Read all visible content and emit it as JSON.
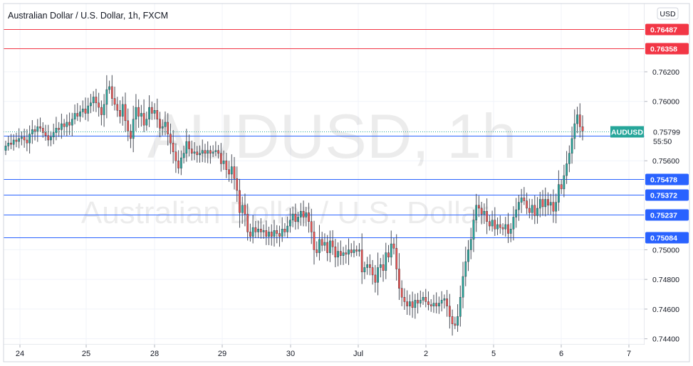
{
  "chart_data": {
    "type": "candlestick",
    "title": "Australian Dollar / U.S. Dollar, 1h, FXCM",
    "watermark_symbol": "AUDUSD, 1h",
    "watermark_name": "Australian Dollar / U.S. Dollar",
    "currency_label": "USD",
    "ylim": [
      0.7436,
      0.7666
    ],
    "y_ticks": [
      "0.76200",
      "0.76000",
      "0.75600",
      "0.75000",
      "0.74800",
      "0.74600",
      "0.74400"
    ],
    "x_ticks": [
      "24",
      "25",
      "28",
      "29",
      "30",
      "Jul",
      "2",
      "5",
      "6",
      "7"
    ],
    "grid": true,
    "last_price": {
      "symbol": "AUDUSD",
      "value": "0.75799",
      "countdown": "55:50",
      "color": "#26a69a"
    },
    "resistance_levels": [
      {
        "value": "0.76487",
        "color": "#f23645"
      },
      {
        "value": "0.76358",
        "color": "#f23645"
      }
    ],
    "support_levels": [
      {
        "value": "0.75767",
        "color": "#2962ff"
      },
      {
        "value": "0.75478",
        "color": "#2962ff"
      },
      {
        "value": "0.75372",
        "color": "#2962ff"
      },
      {
        "value": "0.75237",
        "color": "#2962ff"
      },
      {
        "value": "0.75084",
        "color": "#2962ff"
      }
    ],
    "colors": {
      "up": "#26a69a",
      "down": "#ef5350",
      "wick": "#4a4e58"
    },
    "closes": [
      0.757,
      0.7572,
      0.7571,
      0.7574,
      0.7573,
      0.7575,
      0.7576,
      0.7574,
      0.7572,
      0.7578,
      0.7581,
      0.758,
      0.7583,
      0.7582,
      0.7579,
      0.7577,
      0.7574,
      0.7576,
      0.7579,
      0.7582,
      0.7581,
      0.7585,
      0.7583,
      0.7586,
      0.7584,
      0.7588,
      0.7592,
      0.759,
      0.7593,
      0.7595,
      0.7592,
      0.7597,
      0.7599,
      0.7603,
      0.7599,
      0.7596,
      0.7591,
      0.7598,
      0.7608,
      0.761,
      0.7602,
      0.7598,
      0.7594,
      0.759,
      0.7598,
      0.7587,
      0.758,
      0.7575,
      0.7588,
      0.7596,
      0.759,
      0.7592,
      0.7584,
      0.7588,
      0.7596,
      0.7592,
      0.7594,
      0.7588,
      0.7582,
      0.7583,
      0.7586,
      0.7578,
      0.7572,
      0.7566,
      0.756,
      0.7555,
      0.7562,
      0.7565,
      0.7573,
      0.7568,
      0.7565,
      0.7566,
      0.7564,
      0.7565,
      0.7567,
      0.7565,
      0.7567,
      0.7565,
      0.7566,
      0.7567,
      0.7565,
      0.7558,
      0.756,
      0.7554,
      0.7551,
      0.7556,
      0.7548,
      0.754,
      0.7525,
      0.753,
      0.7524,
      0.7512,
      0.7509,
      0.7515,
      0.7512,
      0.7514,
      0.7512,
      0.7513,
      0.7509,
      0.7512,
      0.7509,
      0.7513,
      0.7511,
      0.7509,
      0.7514,
      0.7512,
      0.7516,
      0.752,
      0.7524,
      0.7519,
      0.7522,
      0.7526,
      0.7522,
      0.7525,
      0.7519,
      0.7512,
      0.75,
      0.7498,
      0.7507,
      0.7503,
      0.7505,
      0.7498,
      0.7506,
      0.7502,
      0.7495,
      0.7499,
      0.7496,
      0.7498,
      0.7497,
      0.75,
      0.7498,
      0.75,
      0.7499,
      0.75,
      0.7485,
      0.7488,
      0.749,
      0.7488,
      0.7483,
      0.7478,
      0.7488,
      0.749,
      0.7486,
      0.7498,
      0.7495,
      0.7504,
      0.7501,
      0.7487,
      0.7474,
      0.7468,
      0.7465,
      0.7462,
      0.7465,
      0.7461,
      0.7466,
      0.7464,
      0.7466,
      0.7468,
      0.7465,
      0.7463,
      0.7462,
      0.7464,
      0.7462,
      0.7464,
      0.7466,
      0.7467,
      0.7462,
      0.7455,
      0.745,
      0.7449,
      0.7455,
      0.7468,
      0.7482,
      0.7492,
      0.75,
      0.7507,
      0.752,
      0.753,
      0.7528,
      0.7524,
      0.7526,
      0.7519,
      0.7516,
      0.752,
      0.7514,
      0.7517,
      0.7515,
      0.7514,
      0.7517,
      0.7511,
      0.7514,
      0.7522,
      0.7527,
      0.7532,
      0.7535,
      0.7533,
      0.7528,
      0.7525,
      0.753,
      0.7523,
      0.7528,
      0.7534,
      0.7529,
      0.7534,
      0.753,
      0.7532,
      0.7526,
      0.7532,
      0.7544,
      0.7541,
      0.755,
      0.7558,
      0.7565,
      0.7575,
      0.7585,
      0.7591,
      0.7583,
      0.758
    ]
  }
}
